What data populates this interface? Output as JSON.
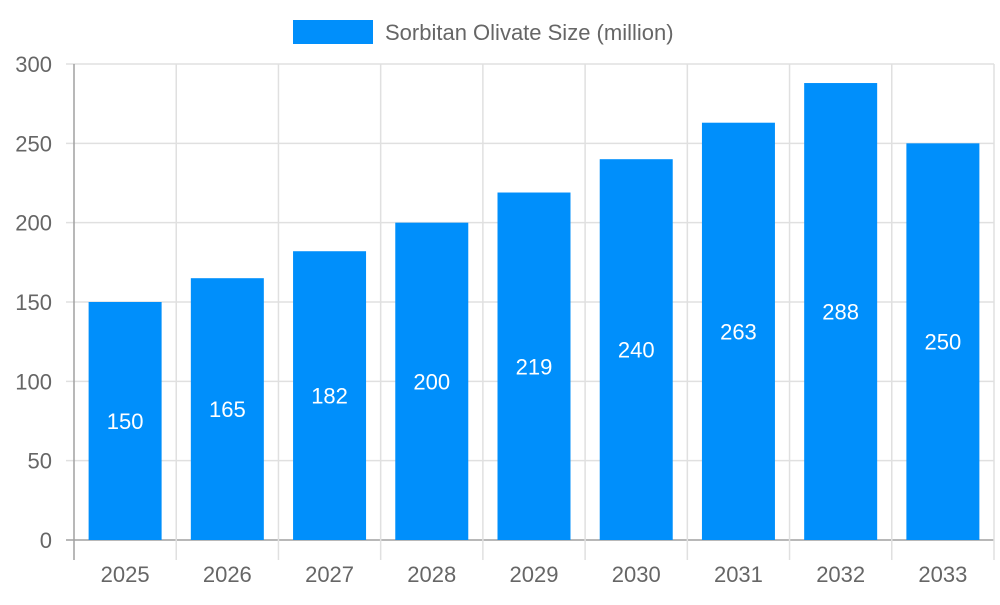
{
  "chart_data": {
    "type": "bar",
    "categories": [
      "2025",
      "2026",
      "2027",
      "2028",
      "2029",
      "2030",
      "2031",
      "2032",
      "2033"
    ],
    "series": [
      {
        "name": "Sorbitan Olivate Size (million)",
        "values": [
          150,
          165,
          182,
          200,
          219,
          240,
          263,
          288,
          250
        ]
      }
    ],
    "ylim": [
      0,
      300
    ],
    "yticks": [
      0,
      50,
      100,
      150,
      200,
      250,
      300
    ],
    "grid": true,
    "legend": "top-center",
    "data_labels": true,
    "colors": {
      "bar": "#008ffb",
      "grid": "#e0e0e0",
      "axis": "#a0a0a0",
      "text": "#666666",
      "label": "#ffffff"
    }
  }
}
